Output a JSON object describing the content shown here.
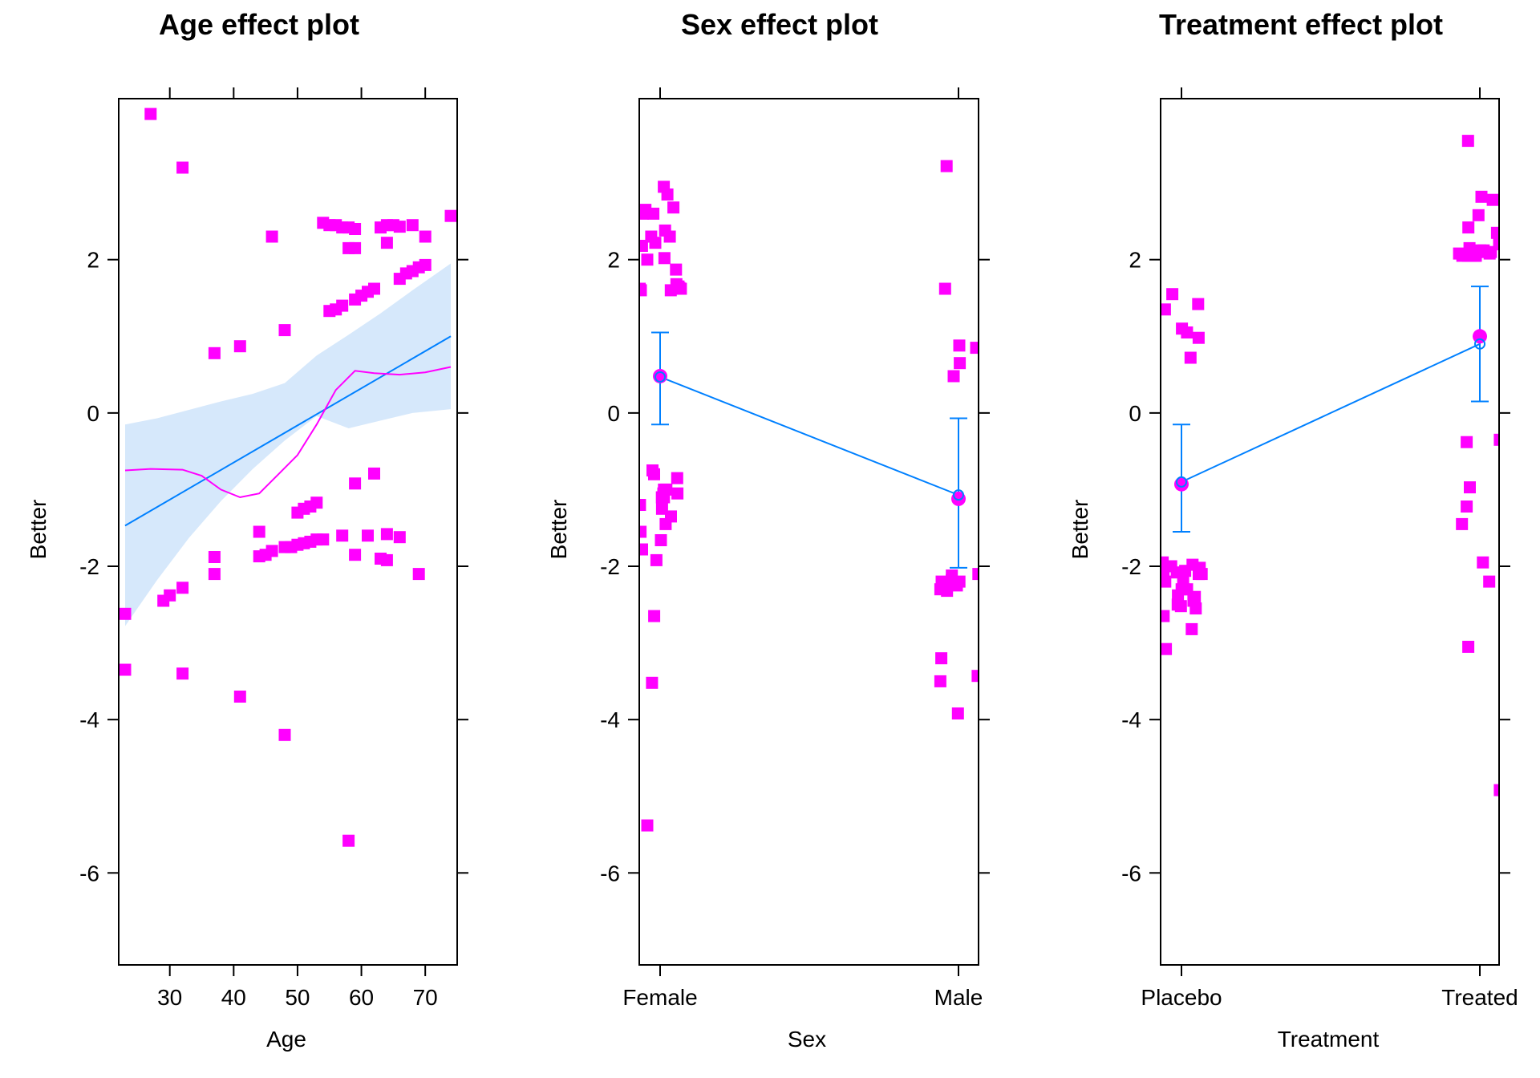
{
  "colors": {
    "points": "#ff00ff",
    "fit_line": "#0080ff",
    "band": "#d6e8fb",
    "smooth": "#ff00ff",
    "frame": "#000000"
  },
  "chart_data": [
    {
      "type": "line",
      "title": "Age effect plot",
      "xlabel": "Age",
      "ylabel": "Better",
      "xlim": [
        22,
        75
      ],
      "ylim": [
        -7.2,
        4.1
      ],
      "xticks": [
        30,
        40,
        50,
        60,
        70
      ],
      "yticks": [
        -6,
        -4,
        -2,
        0,
        2
      ],
      "fit": {
        "x": [
          23,
          74
        ],
        "y": [
          -1.47,
          1.0
        ]
      },
      "band": {
        "x": [
          23,
          28,
          33,
          38,
          43,
          48,
          53,
          58,
          63,
          68,
          74
        ],
        "lower": [
          -2.78,
          -2.18,
          -1.63,
          -1.15,
          -0.73,
          -0.36,
          -0.04,
          -0.2,
          -0.1,
          -0.0,
          0.05
        ],
        "upper": [
          -0.15,
          -0.07,
          0.04,
          0.15,
          0.25,
          0.39,
          0.75,
          1.02,
          1.3,
          1.6,
          1.95
        ]
      },
      "smooth": {
        "x": [
          23,
          27,
          32,
          35,
          38,
          41,
          44,
          47,
          50,
          53,
          56,
          59,
          62,
          66,
          70,
          74
        ],
        "y": [
          -0.75,
          -0.73,
          -0.74,
          -0.82,
          -1.0,
          -1.1,
          -1.05,
          -0.8,
          -0.55,
          -0.15,
          0.3,
          0.55,
          0.52,
          0.5,
          0.53,
          0.6
        ]
      },
      "points": [
        [
          23,
          -2.62
        ],
        [
          23,
          -3.35
        ],
        [
          27,
          3.9
        ],
        [
          32,
          3.2
        ],
        [
          29,
          -2.45
        ],
        [
          30,
          -2.38
        ],
        [
          32,
          -2.28
        ],
        [
          32,
          -3.4
        ],
        [
          37,
          0.78
        ],
        [
          37,
          -1.88
        ],
        [
          37,
          -2.1
        ],
        [
          41,
          0.87
        ],
        [
          41,
          -3.7
        ],
        [
          44,
          -1.55
        ],
        [
          44,
          -1.87
        ],
        [
          45,
          -1.85
        ],
        [
          46,
          2.3
        ],
        [
          46,
          -1.8
        ],
        [
          48,
          1.08
        ],
        [
          48,
          -4.2
        ],
        [
          48,
          -1.75
        ],
        [
          49,
          -1.75
        ],
        [
          50,
          -1.3
        ],
        [
          50,
          -1.72
        ],
        [
          51,
          -1.25
        ],
        [
          51,
          -1.7
        ],
        [
          52,
          -1.22
        ],
        [
          52,
          -1.68
        ],
        [
          53,
          -1.17
        ],
        [
          53,
          -1.65
        ],
        [
          54,
          2.48
        ],
        [
          54,
          -1.65
        ],
        [
          55,
          2.45
        ],
        [
          55,
          1.33
        ],
        [
          56,
          2.45
        ],
        [
          56,
          1.35
        ],
        [
          57,
          2.42
        ],
        [
          57,
          1.4
        ],
        [
          57,
          -1.6
        ],
        [
          58,
          2.42
        ],
        [
          58,
          2.15
        ],
        [
          58,
          -5.58
        ],
        [
          59,
          2.15
        ],
        [
          59,
          2.4
        ],
        [
          59,
          1.48
        ],
        [
          59,
          -0.92
        ],
        [
          59,
          -1.85
        ],
        [
          60,
          1.53
        ],
        [
          61,
          1.58
        ],
        [
          61,
          -1.6
        ],
        [
          62,
          1.62
        ],
        [
          62,
          -0.79
        ],
        [
          63,
          2.42
        ],
        [
          63,
          -1.9
        ],
        [
          64,
          2.45
        ],
        [
          64,
          2.22
        ],
        [
          64,
          -1.58
        ],
        [
          64,
          -1.92
        ],
        [
          65,
          2.45
        ],
        [
          66,
          2.43
        ],
        [
          66,
          1.75
        ],
        [
          66,
          -1.62
        ],
        [
          67,
          1.82
        ],
        [
          68,
          2.45
        ],
        [
          68,
          1.85
        ],
        [
          69,
          1.9
        ],
        [
          69,
          -2.1
        ],
        [
          70,
          1.93
        ],
        [
          70,
          2.3
        ],
        [
          74,
          2.57
        ]
      ]
    },
    {
      "type": "line",
      "title": "Sex effect plot",
      "xlabel": "Sex",
      "ylabel": "Better",
      "categories": [
        "Female",
        "Male"
      ],
      "ylim": [
        -7.2,
        4.1
      ],
      "yticks": [
        -6,
        -4,
        -2,
        0,
        2
      ],
      "fit": [
        0.47,
        -1.07
      ],
      "lower": [
        -0.15,
        -2.02
      ],
      "upper": [
        1.05,
        -0.07
      ],
      "means": [
        0.48,
        -1.12
      ],
      "points": [
        [
          0,
          2.95
        ],
        [
          0,
          1.6
        ],
        [
          0,
          -0.8
        ],
        [
          0,
          1.87
        ],
        [
          0,
          2.0
        ],
        [
          0,
          -0.85
        ],
        [
          0,
          -1.0
        ],
        [
          0,
          -1.35
        ],
        [
          0,
          -1.78
        ],
        [
          0,
          2.85
        ],
        [
          0,
          1.65
        ],
        [
          0,
          -1.05
        ],
        [
          0,
          -1.1
        ],
        [
          0,
          -1.45
        ],
        [
          0,
          2.38
        ],
        [
          0,
          1.63
        ],
        [
          0,
          -1.05
        ],
        [
          0,
          -1.55
        ],
        [
          0,
          2.68
        ],
        [
          0,
          1.65
        ],
        [
          0,
          -0.75
        ],
        [
          0,
          2.65
        ],
        [
          0,
          1.62
        ],
        [
          0,
          -1.1
        ],
        [
          0,
          2.3
        ],
        [
          0,
          2.02
        ],
        [
          0,
          1.6
        ],
        [
          0,
          -1.0
        ],
        [
          0,
          -3.52
        ],
        [
          0,
          -5.38
        ],
        [
          0,
          2.6
        ],
        [
          0,
          2.22
        ],
        [
          0,
          1.68
        ],
        [
          0,
          -1.92
        ],
        [
          0,
          2.3
        ],
        [
          0,
          1.62
        ],
        [
          0,
          -1.2
        ],
        [
          0,
          -1.25
        ],
        [
          0,
          -1.66
        ],
        [
          0,
          -2.65
        ],
        [
          0,
          2.6
        ],
        [
          0,
          2.18
        ],
        [
          1,
          -3.2
        ],
        [
          1,
          -3.43
        ],
        [
          1,
          -3.5
        ],
        [
          1,
          3.22
        ],
        [
          1,
          0.65
        ],
        [
          1,
          -3.92
        ],
        [
          1,
          -2.12
        ],
        [
          1,
          -2.2
        ],
        [
          1,
          0.48
        ],
        [
          1,
          0.85
        ],
        [
          1,
          -2.25
        ],
        [
          1,
          -2.32
        ],
        [
          1,
          1.62
        ],
        [
          1,
          -2.1
        ],
        [
          1,
          -2.18
        ],
        [
          1,
          -2.25
        ],
        [
          1,
          -2.2
        ],
        [
          1,
          -2.3
        ],
        [
          1,
          0.88
        ]
      ]
    },
    {
      "type": "line",
      "title": "Treatment effect plot",
      "xlabel": "Treatment",
      "ylabel": "Better",
      "categories": [
        "Placebo",
        "Treated"
      ],
      "ylim": [
        -7.2,
        4.1
      ],
      "yticks": [
        -6,
        -4,
        -2,
        0,
        2
      ],
      "fit": [
        -0.9,
        0.9
      ],
      "lower": [
        -1.55,
        0.15
      ],
      "upper": [
        -0.15,
        1.65
      ],
      "means": [
        -0.93,
        1.0
      ],
      "points": [
        [
          0,
          1.05
        ],
        [
          0,
          1.1
        ],
        [
          0,
          0.98
        ],
        [
          0,
          0.72
        ],
        [
          0,
          1.35
        ],
        [
          0,
          1.55
        ],
        [
          0,
          1.42
        ],
        [
          0,
          -2.3
        ],
        [
          0,
          -2.1
        ],
        [
          0,
          -2.65
        ],
        [
          0,
          -3.08
        ],
        [
          0,
          -2.05
        ],
        [
          0,
          -1.95
        ],
        [
          0,
          -2.0
        ],
        [
          0,
          -2.15
        ],
        [
          0,
          -2.3
        ],
        [
          0,
          -2.38
        ],
        [
          0,
          -2.5
        ],
        [
          0,
          -2.02
        ],
        [
          0,
          -2.2
        ],
        [
          0,
          -2.4
        ],
        [
          0,
          -1.98
        ],
        [
          0,
          -2.1
        ],
        [
          0,
          -2.45
        ],
        [
          0,
          -2.55
        ],
        [
          0,
          -2.06
        ],
        [
          0,
          -2.08
        ],
        [
          0,
          -2.3
        ],
        [
          0,
          -2.52
        ],
        [
          0,
          -2.82
        ],
        [
          1,
          2.42
        ],
        [
          1,
          2.12
        ],
        [
          1,
          2.05
        ],
        [
          1,
          3.55
        ],
        [
          1,
          2.78
        ],
        [
          1,
          2.82
        ],
        [
          1,
          2.1
        ],
        [
          1,
          2.15
        ],
        [
          1,
          2.05
        ],
        [
          1,
          2.1
        ],
        [
          1,
          2.2
        ],
        [
          1,
          2.35
        ],
        [
          1,
          2.08
        ],
        [
          1,
          2.05
        ],
        [
          1,
          -0.35
        ],
        [
          1,
          -1.95
        ],
        [
          1,
          -0.38
        ],
        [
          1,
          -2.2
        ],
        [
          1,
          -3.05
        ],
        [
          1,
          -1.22
        ],
        [
          1,
          -0.97
        ],
        [
          1,
          -1.45
        ],
        [
          1,
          2.12
        ],
        [
          1,
          2.05
        ],
        [
          1,
          2.58
        ],
        [
          1,
          2.1
        ],
        [
          1,
          2.08
        ],
        [
          1,
          2.05
        ],
        [
          1,
          -4.92
        ]
      ]
    }
  ]
}
